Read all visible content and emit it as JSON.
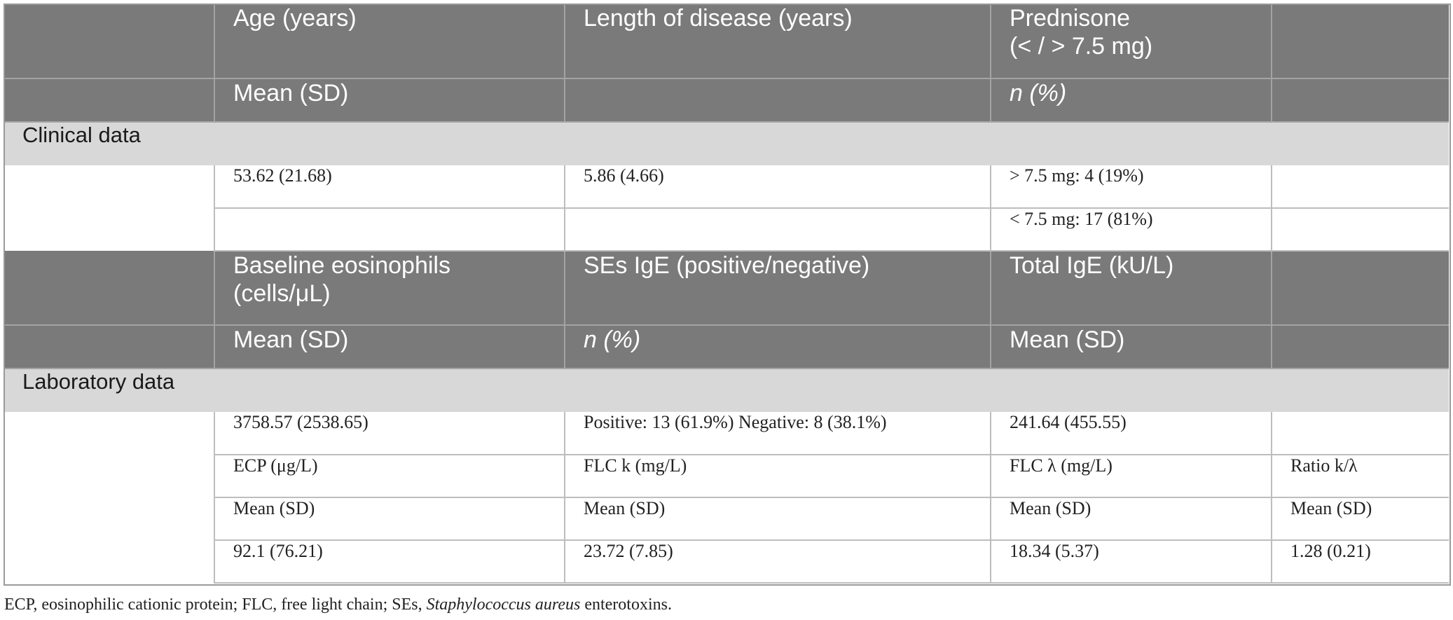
{
  "header_row_1": {
    "col1": "Age (years)",
    "col2": "Length of disease (years)",
    "col3_line1": "Prednisone",
    "col3_line2": "(< / > 7.5 mg)",
    "col4": ""
  },
  "header_row_2": {
    "col1": "Mean (SD)",
    "col2": "",
    "col3": "n (%)",
    "col4": ""
  },
  "clinical_section": {
    "title": "Clinical data",
    "rows": [
      [
        "",
        "53.62 (21.68)",
        "5.86 (4.66)",
        "> 7.5 mg: 4 (19%)",
        ""
      ],
      [
        "",
        "",
        "",
        "< 7.5 mg: 17 (81%)",
        ""
      ]
    ]
  },
  "header_row_3": {
    "col1_line1": "Baseline eosinophils",
    "col1_line2": "(cells/μL)",
    "col2": "SEs IgE (positive/negative)",
    "col3": "Total IgE (kU/L)",
    "col4": ""
  },
  "header_row_4": {
    "col1": "Mean (SD)",
    "col2": "n (%)",
    "col3": "Mean (SD)",
    "col4": ""
  },
  "laboratory_section": {
    "title": "Laboratory data",
    "rows": [
      [
        "",
        "3758.57 (2538.65)",
        "Positive: 13 (61.9%) Negative: 8 (38.1%)",
        "241.64 (455.55)",
        ""
      ],
      [
        "",
        "ECP (μg/L)",
        "FLC k (mg/L)",
        "FLC λ (mg/L)",
        "Ratio k/λ"
      ],
      [
        "",
        "Mean (SD)",
        "Mean (SD)",
        "Mean (SD)",
        "Mean (SD)"
      ],
      [
        "",
        "92.1 (76.21)",
        "23.72 (7.85)",
        "18.34 (5.37)",
        "1.28 (0.21)"
      ]
    ]
  },
  "footnote": {
    "prefix": "ECP, eosinophilic cationic protein; FLC, free light chain; SEs, ",
    "species": "Staphylococcus aureus",
    "suffix": " enterotoxins."
  },
  "colors": {
    "header_bg": "#7a7a7a",
    "section_bg": "#d8d8d8",
    "border": "#bdbdbd"
  }
}
